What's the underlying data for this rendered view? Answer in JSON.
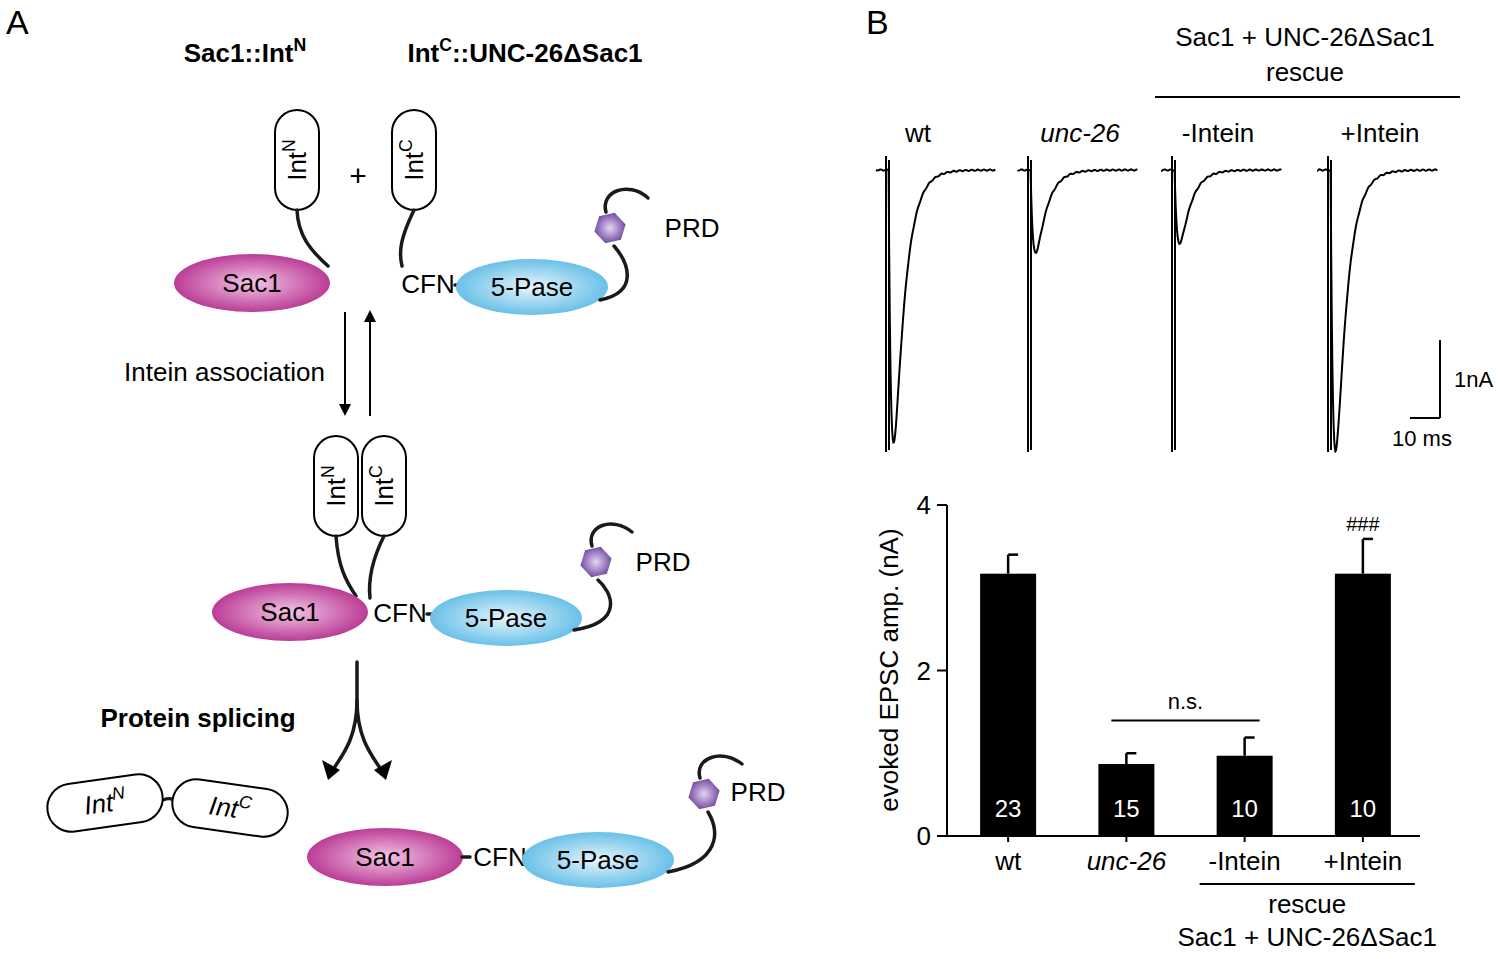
{
  "panel_labels": {
    "a": "A",
    "b": "B"
  },
  "diagram": {
    "constructs": [
      {
        "base": "Sac1::Int",
        "sup": "N",
        "suffix": ""
      },
      {
        "base": "Int",
        "sup": "C",
        "suffix": "::UNC-26ΔSac1"
      }
    ],
    "intein_n": {
      "base": "Int",
      "sup": "N"
    },
    "intein_c": {
      "base": "Int",
      "sup": "C"
    },
    "sac1": "Sac1",
    "linker": "CFN",
    "phosphatase": "5-Pase",
    "prd": "PRD",
    "plus": "+",
    "step1": "Intein association",
    "step2": "Protein splicing"
  },
  "traces": {
    "header": "Sac1 + UNC-26ΔSac1",
    "subheader": "rescue",
    "labels": [
      "wt",
      "unc-26",
      "-Intein",
      "+Intein"
    ],
    "peaks": [
      -3.5,
      -1.06,
      -0.94,
      -3.6
    ],
    "scale_bar": {
      "amplitude": 1,
      "amplitude_label": "1nA",
      "time": 10,
      "time_label": "10 ms"
    }
  },
  "chart_data": {
    "type": "bar",
    "y_label": "evoked EPSC amp. (nA)",
    "categories": [
      "wt",
      "unc-26",
      "-Intein",
      "+Intein"
    ],
    "values": [
      3.17,
      0.87,
      0.97,
      3.17
    ],
    "errors": [
      0.23,
      0.13,
      0.22,
      0.42
    ],
    "sample_sizes": [
      23,
      15,
      10,
      10
    ],
    "color": "#000000",
    "ylim": [
      0,
      4
    ],
    "yticks": [
      0,
      2,
      4
    ],
    "annotations": [
      {
        "text": "n.s.",
        "from": 1,
        "to": 2
      },
      {
        "text": "###",
        "at": 3
      }
    ],
    "group_label": {
      "lines": [
        "rescue",
        "Sac1 + UNC-26ΔSac1"
      ],
      "from": 2,
      "to": 3
    }
  }
}
